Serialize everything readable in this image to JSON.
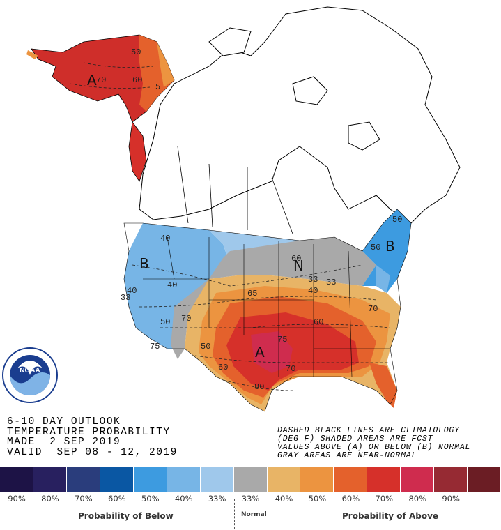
{
  "title_lines": [
    "6-10 DAY OUTLOOK",
    "TEMPERATURE PROBABILITY",
    "MADE  2 SEP 2019",
    "VALID  SEP 08 - 12, 2019"
  ],
  "legend_note_lines": [
    "DASHED BLACK LINES ARE CLIMATOLOGY",
    "(DEG F) SHADED AREAS ARE FCST",
    "VALUES ABOVE (A) OR BELOW (B) NORMAL",
    "GRAY AREAS ARE NEAR-NORMAL"
  ],
  "logo": {
    "text": "NOAA",
    "ring_text": "NATIONAL OCEANIC AND ATMOSPHERIC ADMINISTRATION · U.S. DEPARTMENT OF COMMERCE"
  },
  "scale": {
    "colors": [
      "#1d1346",
      "#28205f",
      "#2a3d7c",
      "#0a57a3",
      "#3d9be0",
      "#77b5e6",
      "#9fc8eb",
      "#a9a9a9",
      "#e8b466",
      "#ec9440",
      "#e4612c",
      "#d6302a",
      "#cf2c4e",
      "#962a33",
      "#6b1d24"
    ],
    "labels": [
      "90%",
      "80%",
      "70%",
      "60%",
      "50%",
      "40%",
      "33%",
      "33%",
      "40%",
      "50%",
      "60%",
      "70%",
      "80%",
      "90%",
      ""
    ],
    "below_caption": "Probability of Below",
    "normal_caption": "Normal",
    "above_caption": "Probability of Above"
  },
  "map_labels": {
    "alaska_letter": "A",
    "alaska_values": [
      "50",
      "70",
      "60",
      "5"
    ],
    "west_letter": "B",
    "west_values": [
      "40",
      "40",
      "40",
      "33",
      "50",
      "75",
      "70"
    ],
    "center_letter": "A",
    "center_values": [
      "65",
      "50",
      "60",
      "75",
      "70",
      "80",
      "60",
      "40",
      "33"
    ],
    "northeast_letter": "B",
    "northeast_values": [
      "50",
      "50"
    ],
    "greatlakes_letter": "N",
    "greatlakes_values": [
      "60",
      "33",
      "70"
    ]
  }
}
